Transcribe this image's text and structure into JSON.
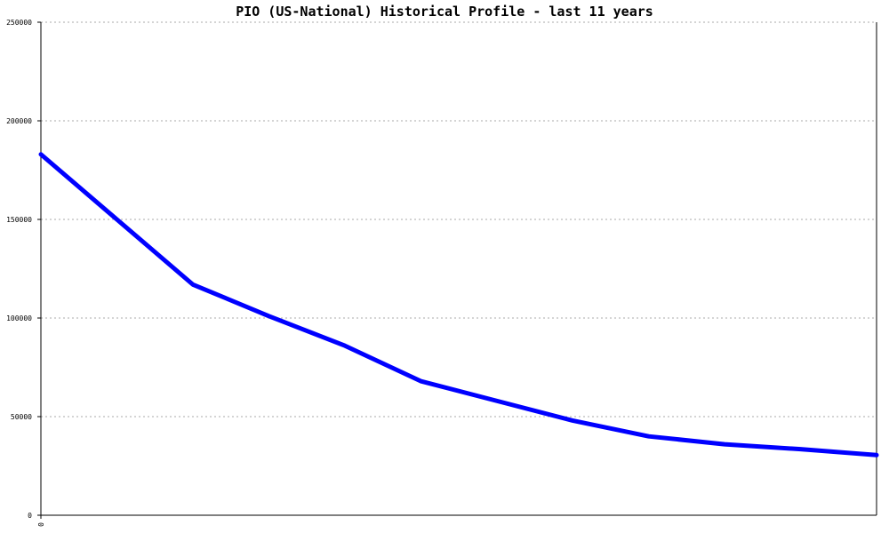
{
  "chart_data": {
    "type": "line",
    "title": "PIO (US-National) Historical Profile - last 11 years",
    "xlabel": "",
    "ylabel": "",
    "ylim": [
      0,
      250000
    ],
    "yticks": [
      "0",
      "50000",
      "100000",
      "150000",
      "200000",
      "250000"
    ],
    "xticks": [
      "0"
    ],
    "grid": true,
    "x": [
      0,
      1,
      2,
      3,
      4,
      5,
      6,
      7,
      8,
      9,
      10,
      11
    ],
    "series": [
      {
        "color": "#0000ff",
        "values": [
          183000,
          150000,
          117000,
          101000,
          86000,
          68000,
          58000,
          48000,
          40000,
          36000,
          33500,
          30500
        ]
      }
    ]
  }
}
